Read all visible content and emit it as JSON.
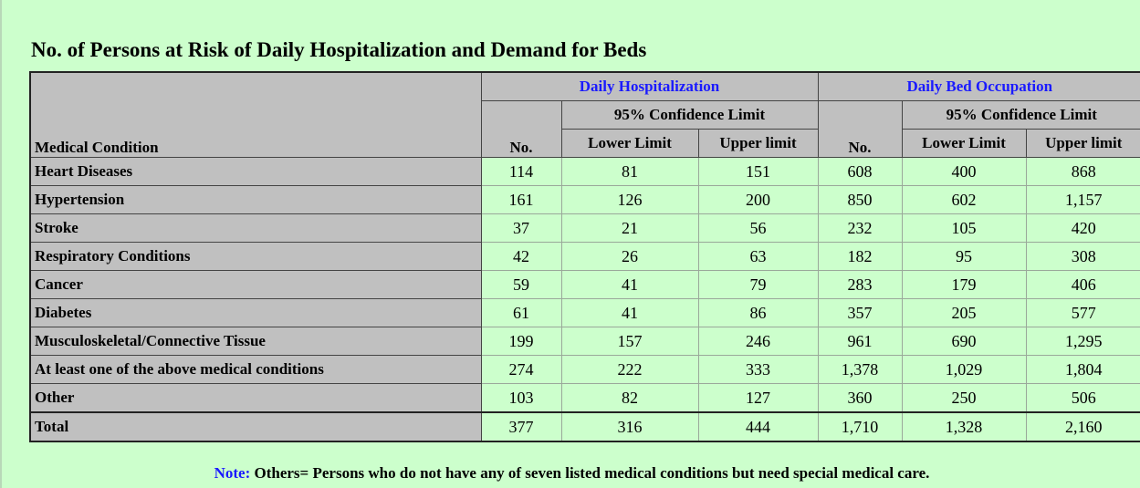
{
  "title": "No. of Persons at Risk of Daily Hospitalization and Demand for Beds",
  "table": {
    "header": {
      "condition": "Medical Condition",
      "group1": "Daily Hospitalization",
      "group2": "Daily Bed Occupation",
      "no1": "No.",
      "ci1": "95% Confidence Limit",
      "lower1": "Lower Limit",
      "upper1": "Upper limit",
      "no2": "No.",
      "ci2": "95% Confidence Limit",
      "lower2": "Lower Limit",
      "upper2": "Upper limit"
    },
    "rows": [
      [
        "Heart Diseases",
        "114",
        "81",
        "151",
        "608",
        "400",
        "868"
      ],
      [
        "Hypertension",
        "161",
        "126",
        "200",
        "850",
        "602",
        "1,157"
      ],
      [
        "Stroke",
        "37",
        "21",
        "56",
        "232",
        "105",
        "420"
      ],
      [
        "Respiratory Conditions",
        "42",
        "26",
        "63",
        "182",
        "95",
        "308"
      ],
      [
        "Cancer",
        "59",
        "41",
        "79",
        "283",
        "179",
        "406"
      ],
      [
        "Diabetes",
        "61",
        "41",
        "86",
        "357",
        "205",
        "577"
      ],
      [
        "Musculoskeletal/Connective Tissue",
        "199",
        "157",
        "246",
        "961",
        "690",
        "1,295"
      ],
      [
        "At least one of the above medical conditions",
        "274",
        "222",
        "333",
        "1,378",
        "1,029",
        "1,804"
      ],
      [
        "Other",
        "103",
        "82",
        "127",
        "360",
        "250",
        "506"
      ],
      [
        "Total",
        "377",
        "316",
        "444",
        "1,710",
        "1,328",
        "2,160"
      ]
    ]
  },
  "note": {
    "label": "Note:",
    "text": "Others=  Persons  who do not have any of seven listed medical conditions but need special medical care."
  }
}
